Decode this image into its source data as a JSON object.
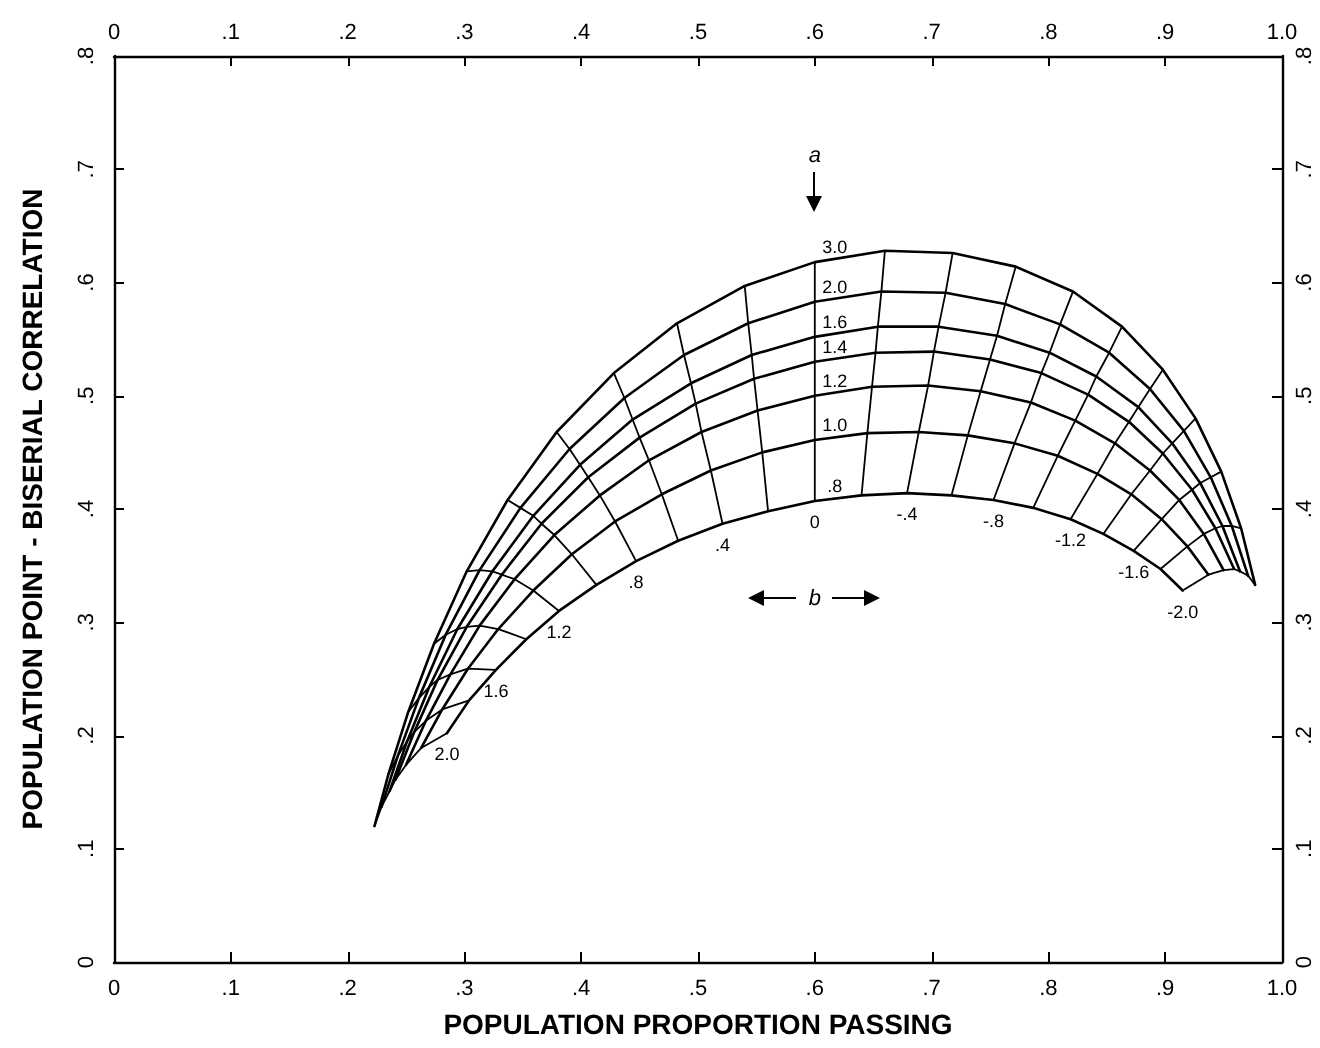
{
  "chart_data": {
    "type": "line",
    "xlabel": "POPULATION PROPORTION PASSING",
    "ylabel": "POPULATION POINT - BISERIAL CORRELATION",
    "xlim": [
      0,
      1
    ],
    "xticks": [
      0,
      {
        "value": 0.1,
        "label": ".1"
      },
      {
        "value": 0.2,
        "label": ".2"
      },
      {
        "value": 0.3,
        "label": ".3"
      },
      {
        "value": 0.4,
        "label": ".4"
      },
      {
        "value": 0.5,
        "label": ".5"
      },
      {
        "value": 0.6,
        "label": ".6"
      },
      {
        "value": 0.7,
        "label": ".7"
      },
      {
        "value": 0.8,
        "label": ".8"
      },
      {
        "value": 0.9,
        "label": ".9"
      },
      {
        "value": 1,
        "label": "1.0"
      }
    ],
    "x2lim": [
      0,
      1
    ],
    "x2ticks": [
      0,
      {
        "value": 0.1,
        "label": ".1"
      },
      {
        "value": 0.2,
        "label": ".2"
      },
      {
        "value": 0.3,
        "label": ".3"
      },
      {
        "value": 0.4,
        "label": ".4"
      },
      {
        "value": 0.5,
        "label": ".5"
      },
      {
        "value": 0.6,
        "label": ".6"
      },
      {
        "value": 0.7,
        "label": ".7"
      },
      {
        "value": 0.8,
        "label": ".8"
      },
      {
        "value": 0.9,
        "label": ".9"
      },
      {
        "value": 1,
        "label": "1.0"
      }
    ],
    "ylim": [
      0,
      0.8
    ],
    "yticks": [
      0,
      {
        "value": 0.1,
        "label": ".1"
      },
      {
        "value": 0.2,
        "label": ".2"
      },
      {
        "value": 0.3,
        "label": ".3"
      },
      {
        "value": 0.4,
        "label": ".4"
      },
      {
        "value": 0.5,
        "label": ".5"
      },
      {
        "value": 0.6,
        "label": ".6"
      },
      {
        "value": 0.7,
        "label": ".7"
      },
      {
        "value": 0.8,
        "label": ".8"
      }
    ],
    "y2lim": [
      0,
      0.8
    ],
    "y2ticks": [
      0,
      {
        "value": 0.1,
        "label": ".1"
      },
      {
        "value": 0.2,
        "label": ".2"
      },
      {
        "value": 0.3,
        "label": ".3"
      },
      {
        "value": 0.4,
        "label": ".4"
      },
      {
        "value": 0.5,
        "label": ".5"
      },
      {
        "value": 0.6,
        "label": ".6"
      },
      {
        "value": 0.7,
        "label": ".7"
      },
      {
        "value": 0.8,
        "label": ".8"
      }
    ],
    "grid": false,
    "marker": "none",
    "line_style": "solid",
    "annotations": [
      "a",
      "b"
    ],
    "series": [
      {
        "name": "3.0",
        "color": "#000000",
        "x": [
          0.223,
          0.235,
          0.252,
          0.274,
          0.302,
          0.337,
          0.379,
          0.428,
          0.482,
          0.54,
          0.6,
          0.66,
          0.718,
          0.772,
          0.821,
          0.863,
          0.898,
          0.926,
          0.948,
          0.965,
          0.977
        ],
        "values": [
          0.12,
          0.166,
          0.221,
          0.281,
          0.345,
          0.408,
          0.468,
          0.52,
          0.564,
          0.597,
          0.618,
          0.628,
          0.626,
          0.614,
          0.592,
          0.561,
          0.523,
          0.48,
          0.433,
          0.383,
          0.333
        ]
      },
      {
        "name": "2.0",
        "color": "#000000",
        "x": [
          0.229,
          0.243,
          0.261,
          0.284,
          0.313,
          0.348,
          0.39,
          0.437,
          0.488,
          0.543,
          0.6,
          0.657,
          0.712,
          0.763,
          0.81,
          0.852,
          0.887,
          0.916,
          0.939,
          0.957,
          0.971
        ],
        "values": [
          0.137,
          0.182,
          0.233,
          0.289,
          0.346,
          0.401,
          0.453,
          0.498,
          0.536,
          0.564,
          0.583,
          0.592,
          0.591,
          0.581,
          0.563,
          0.538,
          0.506,
          0.469,
          0.428,
          0.385,
          0.341
        ]
      },
      {
        "name": "1.6",
        "color": "#000000",
        "x": [
          0.236,
          0.251,
          0.27,
          0.294,
          0.324,
          0.359,
          0.399,
          0.444,
          0.494,
          0.546,
          0.6,
          0.654,
          0.706,
          0.756,
          0.801,
          0.841,
          0.877,
          0.906,
          0.93,
          0.949,
          0.964
        ],
        "values": [
          0.151,
          0.195,
          0.243,
          0.294,
          0.345,
          0.394,
          0.439,
          0.479,
          0.511,
          0.536,
          0.552,
          0.561,
          0.561,
          0.553,
          0.538,
          0.517,
          0.49,
          0.458,
          0.423,
          0.385,
          0.345
        ]
      },
      {
        "name": "1.4",
        "color": "#000000",
        "x": [
          0.241,
          0.257,
          0.277,
          0.302,
          0.332,
          0.366,
          0.406,
          0.45,
          0.498,
          0.548,
          0.6,
          0.652,
          0.702,
          0.75,
          0.794,
          0.834,
          0.869,
          0.898,
          0.923,
          0.943,
          0.959
        ],
        "values": [
          0.161,
          0.203,
          0.249,
          0.296,
          0.342,
          0.387,
          0.428,
          0.463,
          0.493,
          0.515,
          0.53,
          0.538,
          0.539,
          0.532,
          0.52,
          0.501,
          0.477,
          0.449,
          0.417,
          0.383,
          0.347
        ]
      },
      {
        "name": "1.2",
        "color": "#000000",
        "x": [
          0.25,
          0.267,
          0.288,
          0.313,
          0.343,
          0.377,
          0.416,
          0.458,
          0.503,
          0.551,
          0.6,
          0.649,
          0.697,
          0.742,
          0.785,
          0.823,
          0.857,
          0.887,
          0.912,
          0.933,
          0.95
        ],
        "values": [
          0.174,
          0.213,
          0.254,
          0.297,
          0.338,
          0.377,
          0.412,
          0.443,
          0.468,
          0.487,
          0.5,
          0.508,
          0.509,
          0.504,
          0.494,
          0.478,
          0.458,
          0.434,
          0.408,
          0.378,
          0.346
        ]
      },
      {
        "name": "1.0",
        "color": "#000000",
        "x": [
          0.263,
          0.281,
          0.303,
          0.329,
          0.359,
          0.392,
          0.429,
          0.469,
          0.511,
          0.555,
          0.6,
          0.645,
          0.689,
          0.731,
          0.771,
          0.808,
          0.842,
          0.871,
          0.897,
          0.919,
          0.937
        ],
        "values": [
          0.189,
          0.223,
          0.259,
          0.294,
          0.328,
          0.36,
          0.389,
          0.413,
          0.434,
          0.45,
          0.461,
          0.467,
          0.468,
          0.465,
          0.458,
          0.447,
          0.431,
          0.413,
          0.391,
          0.367,
          0.342
        ]
      },
      {
        "name": ".8",
        "color": "#000000",
        "x": [
          0.285,
          0.304,
          0.327,
          0.353,
          0.381,
          0.413,
          0.447,
          0.483,
          0.521,
          0.56,
          0.6,
          0.64,
          0.679,
          0.717,
          0.753,
          0.787,
          0.819,
          0.847,
          0.873,
          0.896,
          0.915
        ],
        "values": [
          0.202,
          0.231,
          0.258,
          0.285,
          0.31,
          0.333,
          0.354,
          0.372,
          0.387,
          0.398,
          0.407,
          0.412,
          0.414,
          0.412,
          0.408,
          0.401,
          0.391,
          0.378,
          0.363,
          0.347,
          0.328
        ]
      },
      {
        "name": "2.0",
        "color": "#000000",
        "x": [
          0.285,
          0.263,
          0.25,
          0.241,
          0.236,
          0.229,
          0.223
        ],
        "values": [
          0.202,
          0.189,
          0.174,
          0.161,
          0.151,
          0.137,
          0.12
        ]
      },
      {
        "color": "#000000",
        "x": [
          0.304,
          0.281,
          0.267,
          0.257,
          0.251,
          0.243,
          0.235
        ],
        "values": [
          0.231,
          0.223,
          0.213,
          0.203,
          0.195,
          0.182,
          0.166
        ]
      },
      {
        "name": "1.6",
        "color": "#000000",
        "x": [
          0.327,
          0.303,
          0.288,
          0.277,
          0.27,
          0.261,
          0.252
        ],
        "values": [
          0.258,
          0.259,
          0.254,
          0.249,
          0.243,
          0.233,
          0.221
        ]
      },
      {
        "color": "#000000",
        "x": [
          0.353,
          0.329,
          0.313,
          0.302,
          0.294,
          0.284,
          0.274
        ],
        "values": [
          0.285,
          0.294,
          0.297,
          0.296,
          0.294,
          0.289,
          0.281
        ]
      },
      {
        "name": "1.2",
        "color": "#000000",
        "x": [
          0.381,
          0.359,
          0.343,
          0.332,
          0.324,
          0.313,
          0.302
        ],
        "values": [
          0.31,
          0.328,
          0.338,
          0.342,
          0.345,
          0.346,
          0.345
        ]
      },
      {
        "color": "#000000",
        "x": [
          0.413,
          0.392,
          0.377,
          0.366,
          0.359,
          0.348,
          0.337
        ],
        "values": [
          0.333,
          0.36,
          0.377,
          0.387,
          0.394,
          0.401,
          0.408
        ]
      },
      {
        "name": ".8",
        "color": "#000000",
        "x": [
          0.447,
          0.429,
          0.416,
          0.406,
          0.399,
          0.39,
          0.379
        ],
        "values": [
          0.354,
          0.389,
          0.412,
          0.428,
          0.439,
          0.453,
          0.468
        ]
      },
      {
        "color": "#000000",
        "x": [
          0.483,
          0.469,
          0.458,
          0.45,
          0.444,
          0.437,
          0.428
        ],
        "values": [
          0.372,
          0.413,
          0.443,
          0.463,
          0.479,
          0.498,
          0.52
        ]
      },
      {
        "name": ".4",
        "color": "#000000",
        "x": [
          0.521,
          0.511,
          0.503,
          0.498,
          0.494,
          0.488,
          0.482
        ],
        "values": [
          0.387,
          0.434,
          0.468,
          0.493,
          0.511,
          0.536,
          0.564
        ]
      },
      {
        "color": "#000000",
        "x": [
          0.56,
          0.555,
          0.551,
          0.548,
          0.546,
          0.543,
          0.54
        ],
        "values": [
          0.398,
          0.45,
          0.487,
          0.515,
          0.536,
          0.564,
          0.597
        ]
      },
      {
        "name": "0",
        "color": "#000000",
        "x": [
          0.6,
          0.6,
          0.6,
          0.6,
          0.6,
          0.6,
          0.6
        ],
        "values": [
          0.407,
          0.461,
          0.5,
          0.53,
          0.552,
          0.583,
          0.618
        ]
      },
      {
        "color": "#000000",
        "x": [
          0.64,
          0.645,
          0.649,
          0.652,
          0.654,
          0.657,
          0.66
        ],
        "values": [
          0.412,
          0.467,
          0.508,
          0.538,
          0.561,
          0.592,
          0.628
        ]
      },
      {
        "name": "-.4",
        "color": "#000000",
        "x": [
          0.679,
          0.689,
          0.697,
          0.702,
          0.706,
          0.712,
          0.718
        ],
        "values": [
          0.414,
          0.468,
          0.509,
          0.539,
          0.561,
          0.591,
          0.626
        ]
      },
      {
        "color": "#000000",
        "x": [
          0.717,
          0.731,
          0.742,
          0.75,
          0.756,
          0.763,
          0.772
        ],
        "values": [
          0.412,
          0.465,
          0.504,
          0.532,
          0.553,
          0.581,
          0.614
        ]
      },
      {
        "name": "-.8",
        "color": "#000000",
        "x": [
          0.753,
          0.771,
          0.785,
          0.794,
          0.801,
          0.81,
          0.821
        ],
        "values": [
          0.408,
          0.458,
          0.494,
          0.52,
          0.538,
          0.563,
          0.592
        ]
      },
      {
        "color": "#000000",
        "x": [
          0.787,
          0.808,
          0.823,
          0.834,
          0.841,
          0.852,
          0.863
        ],
        "values": [
          0.401,
          0.447,
          0.478,
          0.501,
          0.517,
          0.538,
          0.561
        ]
      },
      {
        "name": "-1.2",
        "color": "#000000",
        "x": [
          0.819,
          0.842,
          0.857,
          0.869,
          0.877,
          0.887,
          0.898
        ],
        "values": [
          0.391,
          0.431,
          0.458,
          0.477,
          0.49,
          0.506,
          0.523
        ]
      },
      {
        "color": "#000000",
        "x": [
          0.847,
          0.871,
          0.887,
          0.898,
          0.906,
          0.916,
          0.926
        ],
        "values": [
          0.378,
          0.413,
          0.434,
          0.449,
          0.458,
          0.469,
          0.48
        ]
      },
      {
        "name": "-1.6",
        "color": "#000000",
        "x": [
          0.873,
          0.897,
          0.912,
          0.923,
          0.93,
          0.939,
          0.948
        ],
        "values": [
          0.363,
          0.391,
          0.408,
          0.417,
          0.423,
          0.428,
          0.433
        ]
      },
      {
        "color": "#000000",
        "x": [
          0.896,
          0.919,
          0.933,
          0.943,
          0.949,
          0.957,
          0.965
        ],
        "values": [
          0.347,
          0.367,
          0.378,
          0.383,
          0.385,
          0.385,
          0.383
        ]
      },
      {
        "name": "-2.0",
        "color": "#000000",
        "x": [
          0.915,
          0.937,
          0.95,
          0.959,
          0.964,
          0.971,
          0.977
        ],
        "values": [
          0.328,
          0.342,
          0.346,
          0.347,
          0.345,
          0.341,
          0.333
        ]
      }
    ]
  }
}
